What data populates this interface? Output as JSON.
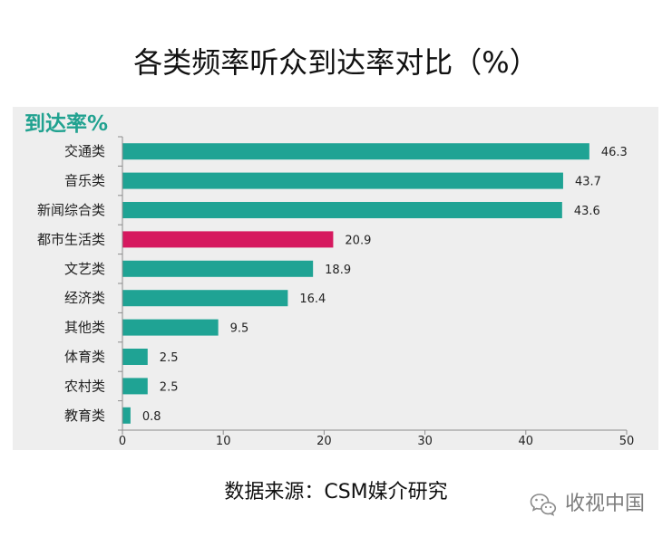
{
  "chart_data": {
    "type": "bar",
    "orientation": "horizontal",
    "title": "各类频率听众到达率对比（%）",
    "value_label": "到达率%",
    "categories": [
      "交通类",
      "音乐类",
      "新闻综合类",
      "都市生活类",
      "文艺类",
      "经济类",
      "其他类",
      "体育类",
      "农村类",
      "教育类"
    ],
    "values": [
      46.3,
      43.7,
      43.6,
      20.9,
      18.9,
      16.4,
      9.5,
      2.5,
      2.5,
      0.8
    ],
    "colors": [
      "#1fa394",
      "#1fa394",
      "#1fa394",
      "#d6195f",
      "#1fa394",
      "#1fa394",
      "#1fa394",
      "#1fa394",
      "#1fa394",
      "#1fa394"
    ],
    "xlim": [
      0,
      50
    ],
    "xticks": [
      0,
      10,
      20,
      30,
      40,
      50
    ],
    "grid": false
  },
  "source": "数据来源：CSM媒介研究",
  "watermark": {
    "icon": "wechat-icon",
    "text": "收视中国"
  }
}
